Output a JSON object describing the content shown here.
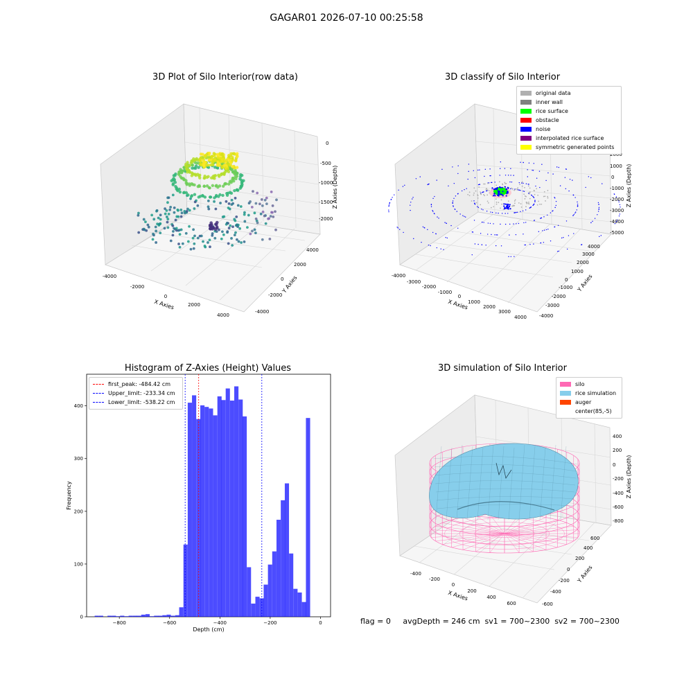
{
  "figure": {
    "suptitle": "GAGAR01 2026-07-10 00:25:58"
  },
  "plots": {
    "raw": {
      "title": "3D Plot of Silo Interior(row data)",
      "xlabel": "X Axies",
      "ylabel": "Y Axies",
      "zlabel": "Z Axies (Depth)",
      "xticks": [
        "-4000",
        "-2000",
        "0",
        "2000",
        "4000"
      ],
      "yticks": [
        "-4000",
        "-2000",
        "0",
        "2000",
        "4000"
      ],
      "zticks": [
        "0",
        "-500",
        "-1000",
        "-1500",
        "-2000"
      ]
    },
    "classify": {
      "title": "3D classify of Silo Interior",
      "xlabel": "X Axies",
      "ylabel": "Y Axies",
      "zlabel": "Z Axies (Depth)",
      "xticks": [
        "-4000",
        "-3000",
        "-2000",
        "-1000",
        "0",
        "1000",
        "2000",
        "3000",
        "4000"
      ],
      "yticks": [
        "-4000",
        "-3000",
        "-2000",
        "-1000",
        "0",
        "1000",
        "2000",
        "3000",
        "4000"
      ],
      "zticks": [
        "2000",
        "1000",
        "0",
        "-1000",
        "-2000",
        "-3000",
        "-4000",
        "-5000"
      ],
      "legend": [
        {
          "label": "original data",
          "color": "#b0b0b0"
        },
        {
          "label": "inner wall",
          "color": "#808080"
        },
        {
          "label": "rice surface",
          "color": "#00ff00"
        },
        {
          "label": "obstacle",
          "color": "#ff0000"
        },
        {
          "label": "noise",
          "color": "#0000ff"
        },
        {
          "label": "interpolated rice surface",
          "color": "#800080"
        },
        {
          "label": "symmetric generated points",
          "color": "#ffff00"
        }
      ]
    },
    "simulation": {
      "title": "3D simulation of Silo Interior",
      "xlabel": "X Axies",
      "ylabel": "Y Axies",
      "zlabel": "Z Axies (Depth)",
      "xticks": [
        "-400",
        "-200",
        "0",
        "200",
        "400",
        "600"
      ],
      "yticks": [
        "-600",
        "-400",
        "-200",
        "0",
        "200",
        "400",
        "600"
      ],
      "zticks": [
        "400",
        "200",
        "0",
        "-200",
        "-400",
        "-600",
        "-800"
      ],
      "legend": [
        {
          "label": "silo",
          "color": "#ff69b4"
        },
        {
          "label": "rice simulation",
          "color": "#87ceeb"
        },
        {
          "label": "auger",
          "color": "#ff4500"
        },
        {
          "label": "center(85,-5)",
          "color": "#ffffff"
        }
      ]
    }
  },
  "chart_data": {
    "type": "bar",
    "title": "Histogram of Z-Axies (Height) Values",
    "xlabel": "Depth (cm)",
    "ylabel": "Frequency",
    "xlim": [
      -930,
      40
    ],
    "ylim": [
      0,
      460
    ],
    "xticks": [
      -800,
      -600,
      -400,
      -200,
      0
    ],
    "yticks": [
      0,
      100,
      200,
      300,
      400
    ],
    "bar_color": "#0000ff",
    "bin_width": 16.8,
    "bin_starts": [
      -898,
      -881,
      -864,
      -847,
      -830,
      -814,
      -797,
      -780,
      -763,
      -746,
      -730,
      -713,
      -696,
      -679,
      -662,
      -646,
      -629,
      -612,
      -595,
      -578,
      -562,
      -545,
      -528,
      -511,
      -494,
      -478,
      -461,
      -444,
      -427,
      -410,
      -394,
      -377,
      -360,
      -343,
      -326,
      -310,
      -293,
      -276,
      -259,
      -242,
      -226,
      -209,
      -192,
      -175,
      -158,
      -142,
      -125,
      -108,
      -91,
      -74,
      -58,
      -41,
      -24,
      -7
    ],
    "counts": [
      2,
      2,
      0,
      2,
      2,
      1,
      2,
      1,
      2,
      2,
      2,
      4,
      5,
      1,
      2,
      2,
      3,
      4,
      2,
      3,
      18,
      137,
      406,
      420,
      375,
      401,
      398,
      395,
      382,
      418,
      411,
      433,
      410,
      437,
      412,
      380,
      94,
      25,
      38,
      35,
      61,
      99,
      124,
      184,
      221,
      253,
      120,
      53,
      46,
      28,
      377,
      0,
      0,
      0
    ],
    "vlines": [
      {
        "label": "first_peak: -484.42 cm",
        "x": -484.42,
        "color": "#ff0000"
      },
      {
        "label": "Upper_limit: -233.34 cm",
        "x": -233.34,
        "color": "#0000ff"
      },
      {
        "label": "Lower_limit: -538.22 cm",
        "x": -538.22,
        "color": "#0000ff"
      }
    ],
    "legend_position": "top-left"
  },
  "footer": {
    "text": "flag = 0     avgDepth = 246 cm  sv1 = 700~2300  sv2 = 700~2300"
  }
}
